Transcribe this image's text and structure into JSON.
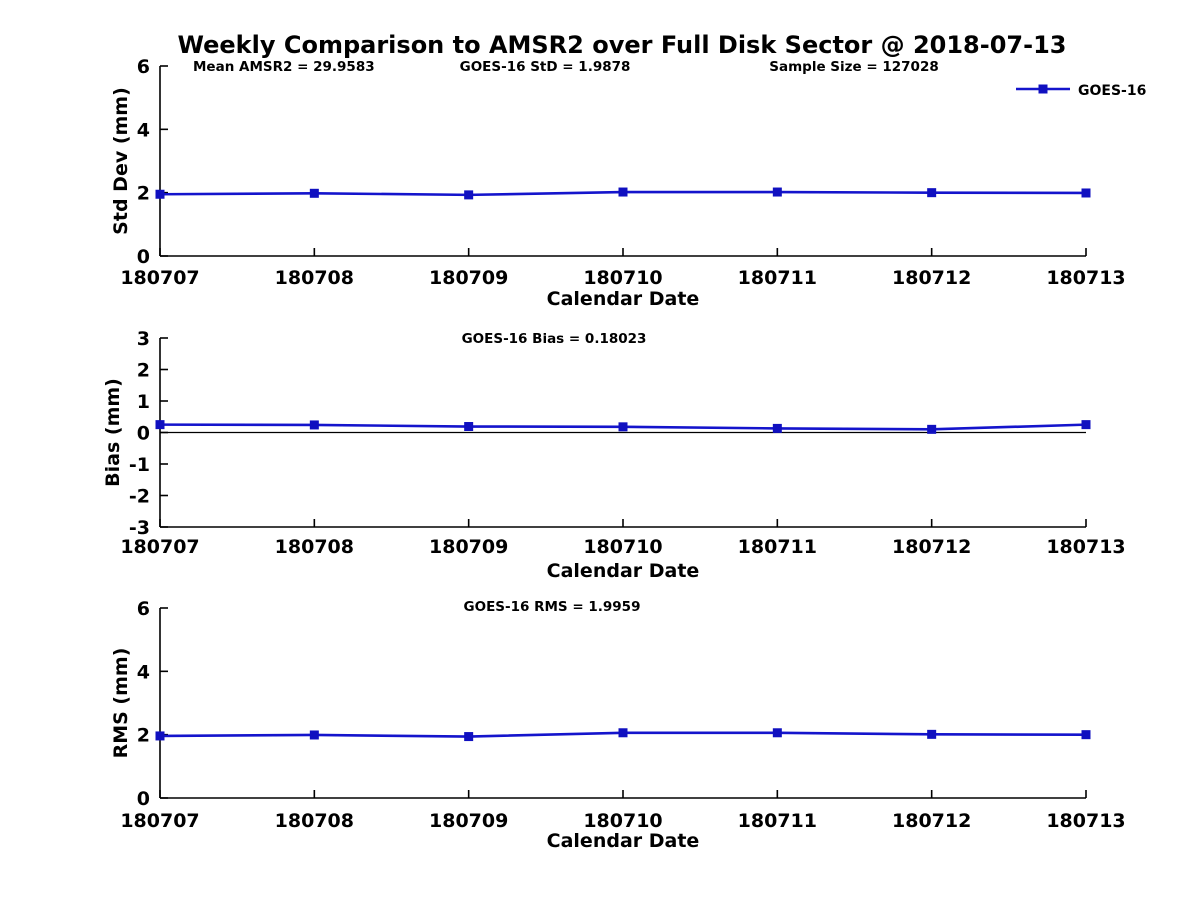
{
  "figure": {
    "title": "Weekly Comparison to AMSR2 over Full Disk Sector @ 2018-07-13",
    "background": "#ffffff",
    "colors": {
      "line": "#1414cc",
      "marker": "#1010c0",
      "axis": "#000000",
      "text": "#000000",
      "zero_line": "#000000"
    }
  },
  "chart_data": [
    {
      "type": "line",
      "panel": "std-dev",
      "annotations": [
        "Mean AMSR2 = 29.9583",
        "GOES-16 StD = 1.9878",
        "Sample Size = 127028"
      ],
      "categories": [
        "180707",
        "180708",
        "180709",
        "180710",
        "180711",
        "180712",
        "180713"
      ],
      "series": [
        {
          "name": "GOES-16",
          "values": [
            1.95,
            1.98,
            1.93,
            2.02,
            2.02,
            2.0,
            1.99
          ]
        }
      ],
      "xlabel": "Calendar Date",
      "ylabel": "Std Dev (mm)",
      "ylim": [
        0,
        6
      ],
      "yticks": [
        0,
        2,
        4,
        6
      ],
      "grid": false,
      "legend": {
        "label": "GOES-16",
        "position": "top-right"
      }
    },
    {
      "type": "line",
      "panel": "bias",
      "annotations": [
        "GOES-16 Bias  = 0.18023"
      ],
      "categories": [
        "180707",
        "180708",
        "180709",
        "180710",
        "180711",
        "180712",
        "180713"
      ],
      "series": [
        {
          "name": "GOES-16",
          "values": [
            0.25,
            0.24,
            0.19,
            0.18,
            0.13,
            0.1,
            0.25
          ]
        }
      ],
      "xlabel": "Calendar Date",
      "ylabel": "Bias (mm)",
      "ylim": [
        -3,
        3
      ],
      "yticks": [
        -3,
        -2,
        -1,
        0,
        1,
        2,
        3
      ],
      "zero_line": true,
      "grid": false
    },
    {
      "type": "line",
      "panel": "rms",
      "annotations": [
        "GOES-16 RMS = 1.9959"
      ],
      "categories": [
        "180707",
        "180708",
        "180709",
        "180710",
        "180711",
        "180712",
        "180713"
      ],
      "series": [
        {
          "name": "GOES-16",
          "values": [
            1.96,
            1.99,
            1.94,
            2.06,
            2.06,
            2.01,
            2.0
          ]
        }
      ],
      "xlabel": "Calendar Date",
      "ylabel": "RMS (mm)",
      "ylim": [
        0,
        6
      ],
      "yticks": [
        0,
        2,
        4,
        6
      ],
      "grid": false
    }
  ]
}
